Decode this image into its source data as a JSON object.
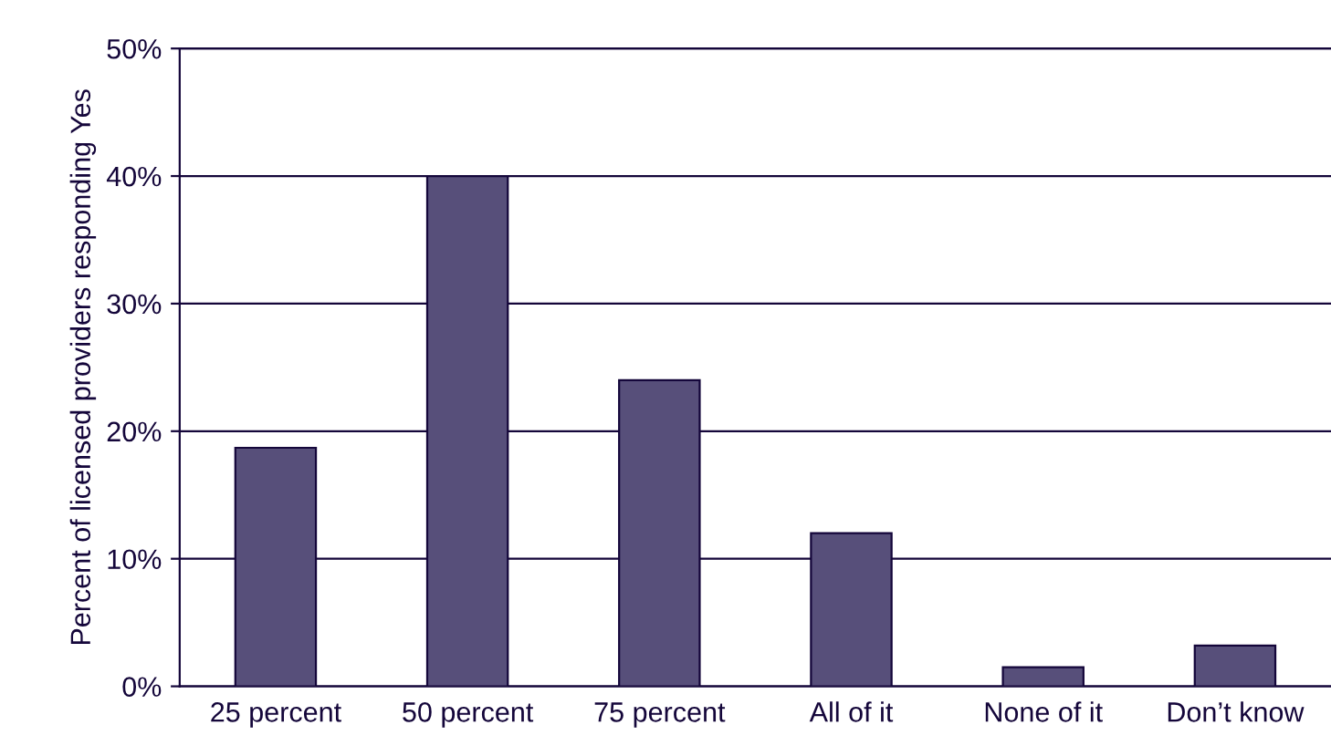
{
  "chart_data": {
    "type": "bar",
    "ylabel": "Percent of licensed providers responding Yes",
    "categories": [
      "25 percent",
      "50 percent",
      "75 percent",
      "All of it",
      "None of it",
      "Don’t know"
    ],
    "values": [
      18.7,
      40,
      24,
      12,
      1.5,
      3.2
    ],
    "color": "#574f7a",
    "ylim": [
      0,
      50
    ],
    "yticks": [
      {
        "value": 0,
        "label": "0%"
      },
      {
        "value": 10,
        "label": "10%"
      },
      {
        "value": 20,
        "label": "20%"
      },
      {
        "value": 30,
        "label": "30%"
      },
      {
        "value": 40,
        "label": "40%"
      },
      {
        "value": 50,
        "label": "50%"
      }
    ],
    "grid": "y"
  }
}
